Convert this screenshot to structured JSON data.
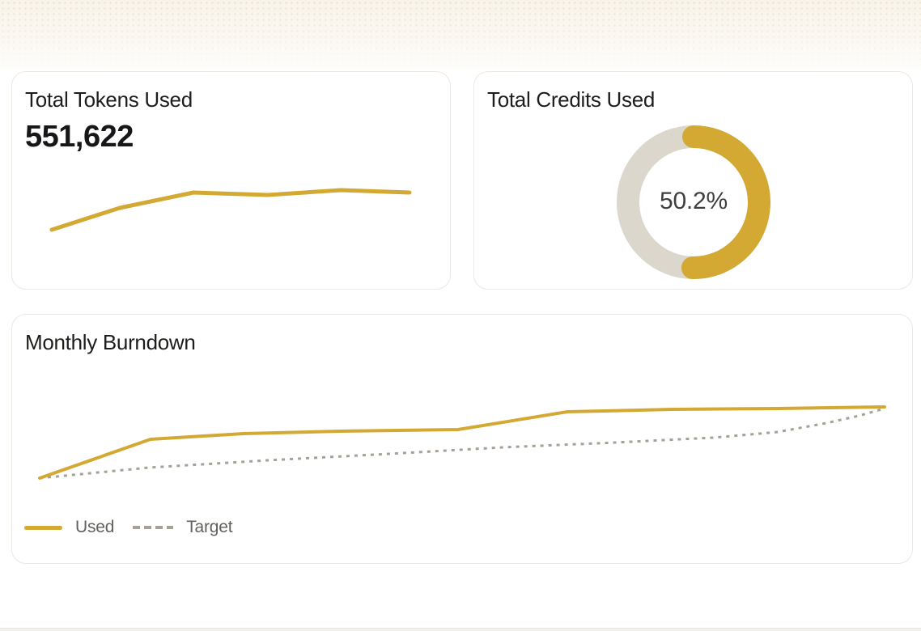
{
  "colors": {
    "gold": "#d3a933",
    "track": "#dbd7cd",
    "dashgray": "#a6a097",
    "title": "#1d1d1b",
    "value": "#17171a",
    "percent": "#3f3f3f",
    "legendtext": "#63615d",
    "cardborder": "#ebe8e3",
    "cream": "#f8f4ea"
  },
  "cards": {
    "tokens": {
      "title": "Total Tokens Used",
      "value": "551,622"
    },
    "credits": {
      "title": "Total Credits Used",
      "percent_label": "50.2%"
    },
    "burndown": {
      "title": "Monthly Burndown",
      "legend": [
        {
          "label": "Used"
        },
        {
          "label": "Target"
        }
      ]
    }
  },
  "chart_data": [
    {
      "id": "tokens_sparkline",
      "type": "line",
      "title": "Total Tokens Used",
      "total_value": 551622,
      "total_label": "551,622",
      "axes": "none",
      "series": [
        {
          "name": "Tokens",
          "color": "#d3a933",
          "style": "solid",
          "values_est": [
            30,
            52,
            68,
            66,
            70,
            68
          ],
          "render_points": [
            [
              49,
              195
            ],
            [
              133,
              168
            ],
            [
              224,
              149
            ],
            [
              316,
              152
            ],
            [
              406,
              146
            ],
            [
              491,
              149
            ]
          ]
        }
      ]
    },
    {
      "id": "credits_donut",
      "type": "donut",
      "title": "Total Credits Used",
      "percent": 50.2,
      "percent_label": "50.2%",
      "used_color": "#d3a933",
      "track_color": "#dbd7cd",
      "start_angle": "top",
      "direction": "clockwise"
    },
    {
      "id": "monthly_burndown",
      "type": "line",
      "title": "Monthly Burndown",
      "axes": "none",
      "legend_position": "bottom-left",
      "series": [
        {
          "name": "Used",
          "color": "#d3a933",
          "style": "solid",
          "values_est": [
            0,
            16,
            18,
            19,
            20,
            27,
            28,
            28,
            29
          ],
          "render_points": [
            [
              34,
              202
            ],
            [
              171,
              154
            ],
            [
              286,
              147
            ],
            [
              406,
              144
            ],
            [
              551,
              142
            ],
            [
              686,
              120
            ],
            [
              816,
              117
            ],
            [
              946,
              116
            ],
            [
              1078,
              114
            ]
          ]
        },
        {
          "name": "Target",
          "color": "#a6a097",
          "style": "dashed",
          "values_est": [
            0,
            4,
            7,
            10,
            13,
            15,
            17,
            19,
            23,
            26,
            29
          ],
          "render_points": [
            [
              34,
              202
            ],
            [
              169,
              189
            ],
            [
              316,
              180
            ],
            [
              466,
              172
            ],
            [
              606,
              164
            ],
            [
              746,
              158
            ],
            [
              866,
              152
            ],
            [
              946,
              145
            ],
            [
              1006,
              134
            ],
            [
              1046,
              125
            ],
            [
              1078,
              116
            ]
          ]
        }
      ]
    }
  ]
}
